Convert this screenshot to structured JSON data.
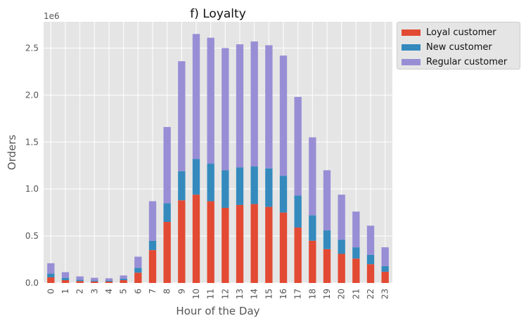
{
  "chart_data": {
    "type": "bar",
    "stacked": true,
    "title": "f) Loyalty",
    "xlabel": "Hour of the Day",
    "ylabel": "Orders",
    "y_scale_label": "1e6",
    "ylim": [
      0,
      2.78
    ],
    "yticks": [
      "0.0",
      "0.5",
      "1.0",
      "1.5",
      "2.0",
      "2.5"
    ],
    "grid": true,
    "legend_position": "outside-top-right",
    "categories": [
      "0",
      "1",
      "2",
      "3",
      "4",
      "5",
      "6",
      "7",
      "8",
      "9",
      "10",
      "11",
      "12",
      "13",
      "14",
      "15",
      "16",
      "17",
      "18",
      "19",
      "20",
      "21",
      "22",
      "23"
    ],
    "series": [
      {
        "name": "Loyal customer",
        "color": "#e24a33",
        "values": [
          0.06,
          0.03,
          0.02,
          0.015,
          0.015,
          0.03,
          0.11,
          0.35,
          0.65,
          0.88,
          0.94,
          0.87,
          0.8,
          0.83,
          0.84,
          0.81,
          0.75,
          0.59,
          0.45,
          0.36,
          0.31,
          0.26,
          0.2,
          0.12
        ]
      },
      {
        "name": "New customer",
        "color": "#348abd",
        "values": [
          0.04,
          0.025,
          0.015,
          0.01,
          0.01,
          0.015,
          0.05,
          0.1,
          0.2,
          0.31,
          0.38,
          0.4,
          0.4,
          0.4,
          0.4,
          0.41,
          0.39,
          0.34,
          0.27,
          0.2,
          0.15,
          0.12,
          0.1,
          0.06
        ]
      },
      {
        "name": "Regular customer",
        "color": "#988ed5",
        "values": [
          0.11,
          0.06,
          0.035,
          0.03,
          0.025,
          0.035,
          0.12,
          0.42,
          0.81,
          1.17,
          1.33,
          1.34,
          1.3,
          1.31,
          1.33,
          1.31,
          1.28,
          1.05,
          0.83,
          0.64,
          0.48,
          0.38,
          0.31,
          0.2
        ]
      }
    ]
  }
}
